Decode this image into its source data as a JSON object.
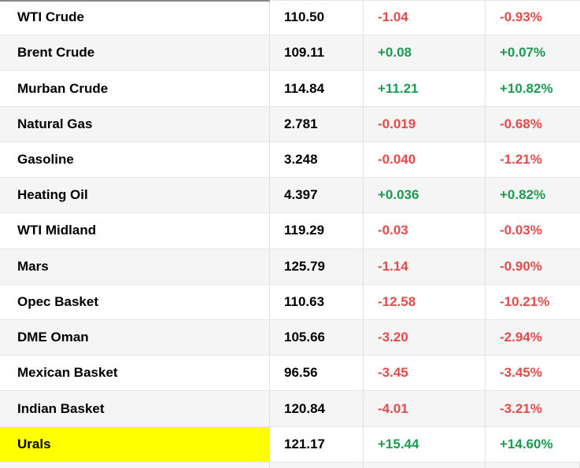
{
  "table": {
    "columns": [
      "name",
      "price",
      "change",
      "change_percent"
    ],
    "rows": [
      {
        "name": "WTI Crude",
        "price": "110.50",
        "change": "-1.04",
        "change_percent": "-0.93%"
      },
      {
        "name": "Brent Crude",
        "price": "109.11",
        "change": "+0.08",
        "change_percent": "+0.07%"
      },
      {
        "name": "Murban Crude",
        "price": "114.84",
        "change": "+11.21",
        "change_percent": "+10.82%"
      },
      {
        "name": "Natural Gas",
        "price": "2.781",
        "change": "-0.019",
        "change_percent": "-0.68%"
      },
      {
        "name": "Gasoline",
        "price": "3.248",
        "change": "-0.040",
        "change_percent": "-1.21%"
      },
      {
        "name": "Heating Oil",
        "price": "4.397",
        "change": "+0.036",
        "change_percent": "+0.82%"
      },
      {
        "name": "WTI Midland",
        "price": "119.29",
        "change": "-0.03",
        "change_percent": "-0.03%"
      },
      {
        "name": "Mars",
        "price": "125.79",
        "change": "-1.14",
        "change_percent": "-0.90%"
      },
      {
        "name": "Opec Basket",
        "price": "110.63",
        "change": "-12.58",
        "change_percent": "-10.21%"
      },
      {
        "name": "DME Oman",
        "price": "105.66",
        "change": "-3.20",
        "change_percent": "-2.94%"
      },
      {
        "name": "Mexican Basket",
        "price": "96.56",
        "change": "-3.45",
        "change_percent": "-3.45%"
      },
      {
        "name": "Indian Basket",
        "price": "120.84",
        "change": "-4.01",
        "change_percent": "-3.21%"
      },
      {
        "name": "Urals",
        "price": "121.17",
        "change": "+15.44",
        "change_percent": "+14.60%",
        "highlighted": true
      }
    ],
    "colors": {
      "positive": "#1b9b51",
      "negative": "#e14b4b",
      "highlight": "#ffff00",
      "row_alt": "#f5f5f5",
      "grid_line": "#e0e0e0",
      "text": "#000000",
      "top_border": "#888888"
    }
  }
}
